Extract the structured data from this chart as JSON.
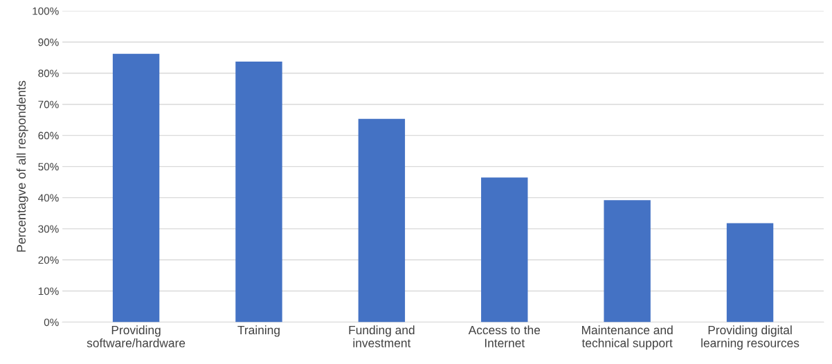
{
  "chart_data": {
    "type": "bar",
    "ylabel": "Percentagve of all respondents",
    "categories": [
      "Providing\nsoftware/hardware",
      "Training",
      "Funding and\ninvestment",
      "Access to the\nInternet",
      "Maintenance and\ntechnical support",
      "Providing digital\nlearning resources"
    ],
    "values": [
      86.2,
      83.7,
      65.3,
      46.5,
      39.2,
      31.8
    ],
    "color": "#4472c4",
    "ylim": [
      0,
      100
    ],
    "yticks": [
      {
        "value": 0,
        "label": "0%"
      },
      {
        "value": 10,
        "label": "10%"
      },
      {
        "value": 20,
        "label": "20%"
      },
      {
        "value": 30,
        "label": "30%"
      },
      {
        "value": 40,
        "label": "40%"
      },
      {
        "value": 50,
        "label": "50%"
      },
      {
        "value": 60,
        "label": "60%"
      },
      {
        "value": 70,
        "label": "70%"
      },
      {
        "value": 80,
        "label": "80%"
      },
      {
        "value": 90,
        "label": "90%"
      },
      {
        "value": 100,
        "label": "100%"
      }
    ],
    "grid": "y"
  }
}
